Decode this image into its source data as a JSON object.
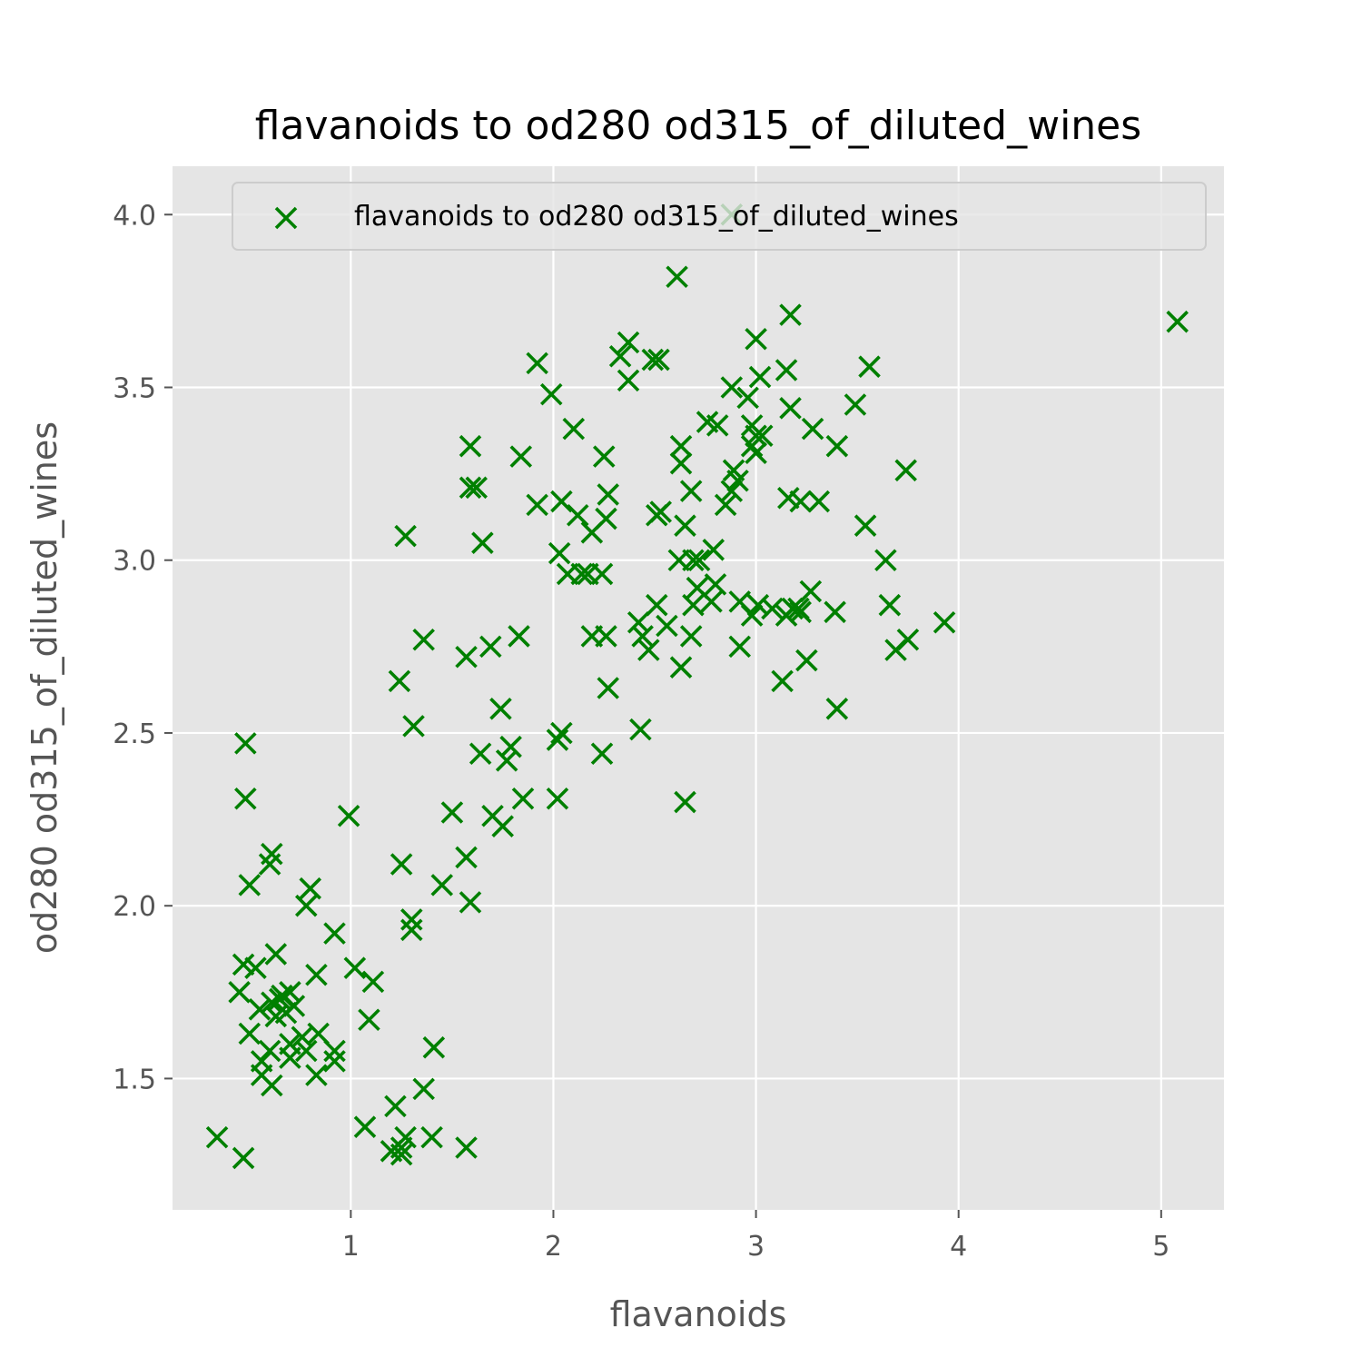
{
  "chart_data": {
    "type": "scatter",
    "title": "flavanoids to od280 od315_of_diluted_wines",
    "xlabel": "flavanoids",
    "ylabel": "od280 od315_of_diluted_wines",
    "xlim": [
      0.12,
      5.31
    ],
    "ylim": [
      1.12,
      4.14
    ],
    "xticks": [
      1,
      2,
      3,
      4,
      5
    ],
    "yticks": [
      1.5,
      2.0,
      2.5,
      3.0,
      3.5,
      4.0
    ],
    "xtick_labels": [
      "1",
      "2",
      "3",
      "4",
      "5"
    ],
    "ytick_labels": [
      "1.5",
      "2.0",
      "2.5",
      "3.0",
      "3.5",
      "4.0"
    ],
    "grid": true,
    "legend_position": "top-right",
    "series": [
      {
        "name": "flavanoids to od280 od315_of_diluted_wines",
        "color": "#008000",
        "marker": "x",
        "points": [
          [
            5.08,
            3.69
          ],
          [
            2.61,
            3.82
          ],
          [
            3.17,
            3.71
          ],
          [
            3.0,
            3.64
          ],
          [
            2.37,
            3.63
          ],
          [
            2.33,
            3.59
          ],
          [
            2.52,
            3.58
          ],
          [
            2.49,
            3.58
          ],
          [
            1.92,
            3.57
          ],
          [
            3.56,
            3.56
          ],
          [
            3.15,
            3.55
          ],
          [
            3.02,
            3.53
          ],
          [
            2.37,
            3.52
          ],
          [
            2.88,
            3.5
          ],
          [
            1.99,
            3.48
          ],
          [
            2.96,
            3.47
          ],
          [
            3.49,
            3.45
          ],
          [
            3.17,
            3.44
          ],
          [
            2.1,
            3.38
          ],
          [
            2.76,
            3.4
          ],
          [
            2.81,
            3.39
          ],
          [
            2.98,
            3.39
          ],
          [
            3.28,
            3.38
          ],
          [
            3.0,
            3.36
          ],
          [
            3.03,
            3.36
          ],
          [
            2.98,
            3.33
          ],
          [
            3.4,
            3.33
          ],
          [
            1.59,
            3.33
          ],
          [
            2.63,
            3.33
          ],
          [
            1.84,
            3.3
          ],
          [
            2.25,
            3.3
          ],
          [
            3.0,
            3.31
          ],
          [
            2.63,
            3.28
          ],
          [
            2.89,
            3.26
          ],
          [
            3.74,
            3.26
          ],
          [
            2.91,
            3.23
          ],
          [
            1.59,
            3.21
          ],
          [
            1.62,
            3.21
          ],
          [
            2.88,
            3.2
          ],
          [
            2.68,
            3.2
          ],
          [
            2.27,
            3.19
          ],
          [
            3.16,
            3.18
          ],
          [
            3.22,
            3.17
          ],
          [
            3.31,
            3.17
          ],
          [
            2.04,
            3.17
          ],
          [
            1.92,
            3.16
          ],
          [
            2.85,
            3.16
          ],
          [
            2.53,
            3.14
          ],
          [
            2.51,
            3.13
          ],
          [
            2.12,
            3.13
          ],
          [
            2.26,
            3.12
          ],
          [
            2.19,
            3.08
          ],
          [
            1.27,
            3.07
          ],
          [
            1.65,
            3.05
          ],
          [
            2.65,
            3.1
          ],
          [
            3.54,
            3.1
          ],
          [
            2.03,
            3.02
          ],
          [
            2.79,
            3.03
          ],
          [
            2.62,
            3.0
          ],
          [
            2.69,
            3.0
          ],
          [
            2.72,
            3.0
          ],
          [
            3.64,
            3.0
          ],
          [
            2.07,
            2.96
          ],
          [
            2.17,
            2.96
          ],
          [
            2.24,
            2.96
          ],
          [
            2.14,
            2.96
          ],
          [
            2.8,
            2.93
          ],
          [
            2.71,
            2.92
          ],
          [
            3.27,
            2.91
          ],
          [
            2.78,
            2.88
          ],
          [
            2.92,
            2.88
          ],
          [
            3.01,
            2.87
          ],
          [
            2.69,
            2.87
          ],
          [
            2.51,
            2.87
          ],
          [
            3.66,
            2.87
          ],
          [
            3.08,
            2.86
          ],
          [
            3.18,
            2.86
          ],
          [
            3.21,
            2.86
          ],
          [
            2.98,
            2.84
          ],
          [
            3.15,
            2.84
          ],
          [
            3.39,
            2.85
          ],
          [
            3.22,
            2.85
          ],
          [
            2.56,
            2.81
          ],
          [
            2.42,
            2.82
          ],
          [
            3.93,
            2.82
          ],
          [
            2.44,
            2.78
          ],
          [
            2.19,
            2.78
          ],
          [
            2.26,
            2.78
          ],
          [
            1.83,
            2.78
          ],
          [
            2.68,
            2.78
          ],
          [
            3.75,
            2.77
          ],
          [
            1.36,
            2.77
          ],
          [
            1.69,
            2.75
          ],
          [
            2.92,
            2.75
          ],
          [
            2.47,
            2.74
          ],
          [
            3.69,
            2.74
          ],
          [
            1.57,
            2.72
          ],
          [
            3.25,
            2.71
          ],
          [
            2.63,
            2.69
          ],
          [
            1.24,
            2.65
          ],
          [
            3.13,
            2.65
          ],
          [
            2.27,
            2.63
          ],
          [
            1.74,
            2.57
          ],
          [
            3.4,
            2.57
          ],
          [
            2.43,
            2.51
          ],
          [
            2.04,
            2.5
          ],
          [
            1.31,
            2.52
          ],
          [
            2.02,
            2.48
          ],
          [
            1.79,
            2.46
          ],
          [
            1.64,
            2.44
          ],
          [
            2.24,
            2.44
          ],
          [
            1.77,
            2.42
          ],
          [
            0.48,
            2.47
          ],
          [
            0.48,
            2.31
          ],
          [
            1.85,
            2.31
          ],
          [
            2.02,
            2.31
          ],
          [
            2.65,
            2.3
          ],
          [
            1.5,
            2.27
          ],
          [
            0.99,
            2.26
          ],
          [
            1.7,
            2.26
          ],
          [
            1.75,
            2.23
          ],
          [
            0.61,
            2.15
          ],
          [
            0.6,
            2.12
          ],
          [
            1.25,
            2.12
          ],
          [
            1.57,
            2.14
          ],
          [
            1.45,
            2.06
          ],
          [
            0.5,
            2.06
          ],
          [
            0.8,
            2.05
          ],
          [
            1.59,
            2.01
          ],
          [
            0.78,
            2.0
          ],
          [
            1.3,
            1.96
          ],
          [
            1.3,
            1.93
          ],
          [
            0.92,
            1.92
          ],
          [
            0.47,
            1.83
          ],
          [
            0.53,
            1.82
          ],
          [
            1.02,
            1.82
          ],
          [
            0.63,
            1.86
          ],
          [
            0.83,
            1.8
          ],
          [
            1.11,
            1.78
          ],
          [
            0.45,
            1.75
          ],
          [
            0.7,
            1.75
          ],
          [
            0.66,
            1.74
          ],
          [
            0.61,
            1.72
          ],
          [
            0.65,
            1.73
          ],
          [
            0.55,
            1.7
          ],
          [
            0.72,
            1.71
          ],
          [
            0.68,
            1.69
          ],
          [
            0.63,
            1.68
          ],
          [
            1.09,
            1.67
          ],
          [
            0.5,
            1.63
          ],
          [
            0.84,
            1.63
          ],
          [
            0.76,
            1.62
          ],
          [
            0.7,
            1.6
          ],
          [
            0.6,
            1.58
          ],
          [
            0.92,
            1.58
          ],
          [
            0.78,
            1.58
          ],
          [
            0.56,
            1.55
          ],
          [
            0.7,
            1.56
          ],
          [
            0.92,
            1.55
          ],
          [
            0.56,
            1.51
          ],
          [
            0.83,
            1.51
          ],
          [
            0.61,
            1.48
          ],
          [
            1.41,
            1.59
          ],
          [
            1.36,
            1.47
          ],
          [
            1.22,
            1.42
          ],
          [
            1.07,
            1.36
          ],
          [
            1.4,
            1.33
          ],
          [
            1.27,
            1.33
          ],
          [
            1.25,
            1.3
          ],
          [
            1.2,
            1.29
          ],
          [
            1.25,
            1.28
          ],
          [
            1.57,
            1.3
          ],
          [
            0.34,
            1.33
          ],
          [
            0.47,
            1.27
          ],
          [
            2.88,
            4.0
          ]
        ]
      }
    ]
  }
}
